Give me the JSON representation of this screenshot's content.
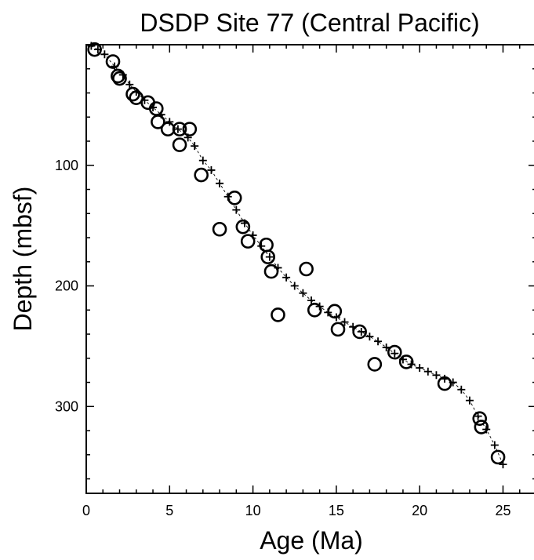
{
  "chart_data": {
    "type": "scatter",
    "title": "DSDP Site 77 (Central Pacific)",
    "xlabel": "Age (Ma)",
    "ylabel": "Depth (mbsf)",
    "xlim": [
      0,
      27
    ],
    "ylim": [
      0,
      372
    ],
    "y_inverted": true,
    "x_ticks": [
      0,
      5,
      10,
      15,
      20,
      25
    ],
    "y_ticks": [
      100,
      200,
      300
    ],
    "grid": false,
    "colors": {
      "axis": "#000000",
      "marker": "#000000",
      "line": "#000000"
    },
    "series": [
      {
        "marker": "circle",
        "x": [
          0.5,
          1.6,
          1.9,
          2.0,
          2.8,
          3.0,
          3.7,
          4.2,
          4.3,
          4.9,
          5.6,
          5.6,
          6.2,
          6.9,
          8.0,
          8.9,
          9.4,
          9.7,
          10.8,
          10.9,
          11.1,
          11.5,
          13.2,
          13.7,
          14.9,
          15.1,
          16.4,
          17.3,
          18.5,
          19.2,
          21.5,
          23.6,
          23.7,
          24.7
        ],
        "y": [
          4,
          14,
          26,
          28,
          41,
          44,
          48,
          53,
          64,
          70,
          70,
          83,
          70,
          108,
          153,
          127,
          151,
          163,
          166,
          176,
          188,
          224,
          186,
          220,
          221,
          236,
          238,
          265,
          255,
          263,
          281,
          310,
          317,
          342
        ]
      },
      {
        "marker": "plus",
        "line": "dashed",
        "x": [
          0.3,
          0.7,
          1.1,
          1.7,
          2.2,
          2.6,
          3.0,
          3.5,
          4.0,
          4.5,
          5.0,
          5.5,
          6.1,
          6.5,
          7.0,
          7.5,
          8.0,
          8.5,
          9.0,
          9.5,
          10.0,
          10.5,
          11.0,
          11.5,
          12.0,
          12.5,
          13.0,
          13.5,
          14.0,
          14.5,
          15.0,
          15.5,
          16.0,
          16.5,
          17.0,
          17.5,
          18.0,
          18.5,
          19.0,
          19.5,
          20.0,
          20.5,
          21.0,
          21.5,
          22.0,
          22.5,
          23.0,
          23.5,
          24.0,
          24.5,
          25.0
        ],
        "y": [
          1,
          4,
          8,
          18,
          25,
          33,
          39,
          46,
          52,
          58,
          64,
          70,
          77,
          84,
          96,
          104,
          115,
          126,
          137,
          148,
          158,
          167,
          176,
          185,
          193,
          200,
          206,
          212,
          217,
          222,
          226,
          230,
          234,
          238,
          242,
          246,
          251,
          256,
          261,
          265,
          268,
          271,
          274,
          277,
          280,
          286,
          295,
          308,
          319,
          332,
          348
        ]
      }
    ]
  }
}
